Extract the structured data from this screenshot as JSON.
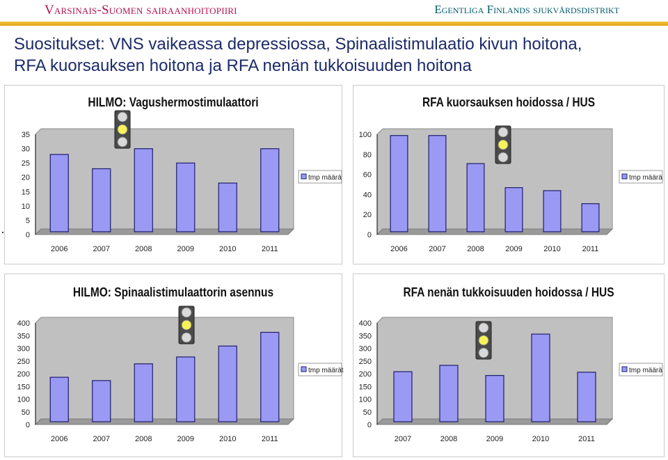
{
  "header": {
    "org_left": "Varsinais-Suomen sairaanhoitopiiri",
    "org_right": "Egentliga Finlands sjukvårdsdistrikt",
    "title_line1": "Suositukset: VNS vaikeassa depressiossa, Spinaalistimulaatio kivun hoitona,",
    "title_line2": "RFA kuorsauksen hoitona ja RFA nenän tukkoisuuden hoitona"
  },
  "colors": {
    "bar_fill": "#9a9af5",
    "bar_stroke": "#1d1d6e",
    "plot_bg": "#c0c0c0",
    "org_left": "#b3134f",
    "org_right": "#005a6a",
    "title": "#1c2b68",
    "accent_line": "#f1c43a",
    "traffic_light_on": "#f7f25a"
  },
  "chart_data": [
    {
      "type": "bar",
      "title": "HILMO: Vagushermostimulaattori",
      "categories": [
        "2006",
        "2007",
        "2008",
        "2009",
        "2010",
        "2011"
      ],
      "series": [
        {
          "name": "tmp määrä",
          "values": [
            27,
            22,
            29,
            24,
            17,
            29
          ]
        }
      ],
      "ylim": [
        0,
        35
      ],
      "yticks": [
        "35",
        "30",
        "25",
        "20",
        "15",
        "10",
        "5",
        "0"
      ],
      "grid": false,
      "legend": "right",
      "traffic_light": "yellow"
    },
    {
      "type": "bar",
      "title": "RFA kuorsauksen hoidossa / HUS",
      "categories": [
        "2006",
        "2007",
        "2008",
        "2009",
        "2010",
        "2011"
      ],
      "series": [
        {
          "name": "tmp määrä",
          "values": [
            96,
            96,
            68,
            44,
            41,
            28
          ]
        }
      ],
      "ylim": [
        0,
        100
      ],
      "yticks": [
        "100",
        "80",
        "60",
        "40",
        "20",
        "0"
      ],
      "grid": false,
      "legend": "right",
      "traffic_light": "yellow"
    },
    {
      "type": "bar",
      "title": "HILMO: Spinaalistimulaattorin asennus",
      "categories": [
        "2006",
        "2007",
        "2008",
        "2009",
        "2010",
        "2011"
      ],
      "series": [
        {
          "name": "tmp määrät",
          "values": [
            175,
            162,
            228,
            255,
            298,
            352
          ]
        }
      ],
      "ylim": [
        0,
        400
      ],
      "yticks": [
        "400",
        "350",
        "300",
        "250",
        "200",
        "150",
        "100",
        "50",
        "0"
      ],
      "grid": false,
      "legend": "right",
      "traffic_light": "yellow"
    },
    {
      "type": "bar",
      "title": "RFA nenän tukkoisuuden hoidossa / HUS",
      "categories": [
        "2007",
        "2008",
        "2009",
        "2010",
        "2011"
      ],
      "series": [
        {
          "name": "tmp määrä",
          "values": [
            197,
            222,
            182,
            345,
            195
          ]
        }
      ],
      "ylim": [
        0,
        400
      ],
      "yticks": [
        "400",
        "350",
        "300",
        "250",
        "200",
        "150",
        "100",
        "50",
        "0"
      ],
      "grid": false,
      "legend": "right",
      "traffic_light": "yellow"
    }
  ]
}
